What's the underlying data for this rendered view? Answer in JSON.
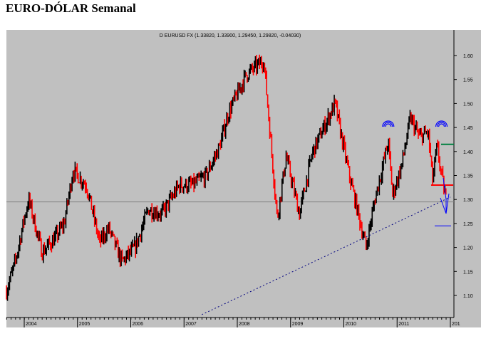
{
  "page_title": "EURO-DÓLAR Semanal",
  "chart_data": {
    "type": "bar",
    "subtype": "weekly OHLC bars (red = down week, black = up week)",
    "title": "D EURUSD FX (1.33820, 1.33900, 1.29450, 1.29820, -0.04030)",
    "xlabel": "",
    "ylabel": "",
    "x_tick_labels": [
      "2004",
      "2005",
      "2006",
      "2007",
      "2008",
      "2009",
      "2010",
      "2011",
      "201"
    ],
    "y_tick_labels": [
      "1.10",
      "1.15",
      "1.20",
      "1.25",
      "1.30",
      "1.35",
      "1.40",
      "1.45",
      "1.50",
      "1.55",
      "1.60"
    ],
    "ylim": [
      1.06,
      1.68
    ],
    "xlim": [
      "2003-09",
      "2012-01"
    ],
    "grid": false,
    "colors": {
      "background": "#c0c0c0",
      "up": "#000000",
      "down": "#ff0000",
      "annotation_blue": "#0000ff",
      "support": "#808080",
      "target_green": "#008040"
    },
    "approx_closes": [
      [
        "2003-09",
        1.11
      ],
      [
        "2003-11",
        1.17
      ],
      [
        "2004-01",
        1.26
      ],
      [
        "2004-02",
        1.3
      ],
      [
        "2004-05",
        1.19
      ],
      [
        "2004-08",
        1.22
      ],
      [
        "2004-10",
        1.25
      ],
      [
        "2004-12",
        1.36
      ],
      [
        "2005-03",
        1.33
      ],
      [
        "2005-06",
        1.21
      ],
      [
        "2005-08",
        1.24
      ],
      [
        "2005-11",
        1.17
      ],
      [
        "2006-02",
        1.2
      ],
      [
        "2006-05",
        1.28
      ],
      [
        "2006-08",
        1.27
      ],
      [
        "2006-12",
        1.33
      ],
      [
        "2007-03",
        1.33
      ],
      [
        "2007-06",
        1.35
      ],
      [
        "2007-09",
        1.41
      ],
      [
        "2007-11",
        1.48
      ],
      [
        "2008-03",
        1.56
      ],
      [
        "2008-07",
        1.59
      ],
      [
        "2008-08",
        1.48
      ],
      [
        "2008-10",
        1.26
      ],
      [
        "2008-12",
        1.39
      ],
      [
        "2009-03",
        1.27
      ],
      [
        "2009-06",
        1.4
      ],
      [
        "2009-09",
        1.46
      ],
      [
        "2009-11",
        1.5
      ],
      [
        "2010-02",
        1.36
      ],
      [
        "2010-06",
        1.2
      ],
      [
        "2010-08",
        1.3
      ],
      [
        "2010-11",
        1.42
      ],
      [
        "2010-12",
        1.31
      ],
      [
        "2011-02",
        1.37
      ],
      [
        "2011-04",
        1.47
      ],
      [
        "2011-06",
        1.43
      ],
      [
        "2011-08",
        1.44
      ],
      [
        "2011-09",
        1.34
      ],
      [
        "2011-10",
        1.41
      ],
      [
        "2011-11",
        1.35
      ],
      [
        "2011-12",
        1.3
      ]
    ],
    "annotations": {
      "support_line": 1.295,
      "trendline": {
        "from": [
          "2007-05",
          1.06
        ],
        "to": [
          "2012-01",
          1.305
        ]
      },
      "neckline_red": 1.33,
      "target_green": 1.415,
      "target_blue": 1.245,
      "tops": [
        "2010-11",
        "2011-11"
      ]
    }
  }
}
